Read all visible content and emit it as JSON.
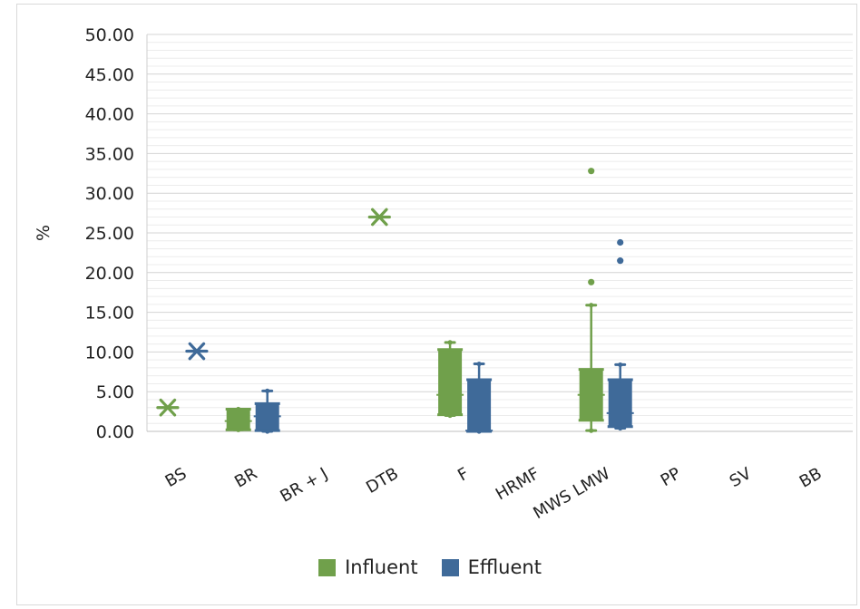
{
  "chart_data": {
    "type": "box",
    "ylabel": "%",
    "xlabel": "",
    "ylim": [
      0,
      50
    ],
    "yticks": [
      "0.00",
      "5.00",
      "10.00",
      "15.00",
      "20.00",
      "25.00",
      "30.00",
      "35.00",
      "40.00",
      "45.00",
      "50.00"
    ],
    "categories": [
      "BS",
      "BR",
      "BR + J",
      "DTB",
      "F",
      "HRMF",
      "MWS LMW",
      "PP",
      "SV",
      "BB"
    ],
    "grid": true,
    "legend_position": "bottom",
    "series": [
      {
        "name": "Influent",
        "color": "#70a04b",
        "single_points": [
          {
            "category": "BS",
            "value": 3.0
          },
          {
            "category": "DTB",
            "value": 27.0
          }
        ],
        "boxes": [
          {
            "category": "BR",
            "min": 0.2,
            "q1": 0.2,
            "median": 1.3,
            "q3": 2.8,
            "max": 2.8,
            "mean": 1.4
          },
          {
            "category": "F",
            "min": 2.0,
            "q1": 2.1,
            "median": 4.6,
            "q3": 10.3,
            "max": 11.2,
            "mean": 4.6
          },
          {
            "category": "MWS LMW",
            "min": 0.1,
            "q1": 1.4,
            "median": 4.6,
            "q3": 7.8,
            "max": 15.9,
            "mean": 4.6,
            "outliers": [
              18.8,
              32.8
            ]
          }
        ]
      },
      {
        "name": "Effluent",
        "color": "#3f6a99",
        "single_points": [
          {
            "category": "BS",
            "value": 10.1
          }
        ],
        "boxes": [
          {
            "category": "BR",
            "min": 0.0,
            "q1": 0.1,
            "median": 1.9,
            "q3": 3.5,
            "max": 5.1,
            "mean": 1.9
          },
          {
            "category": "F",
            "min": 0.0,
            "q1": 0.0,
            "median": 0.1,
            "q3": 6.5,
            "max": 8.5,
            "mean": 0.1
          },
          {
            "category": "MWS LMW",
            "min": 0.4,
            "q1": 0.6,
            "median": 2.3,
            "q3": 6.5,
            "max": 8.4,
            "mean": 2.3,
            "outliers": [
              21.5,
              23.8
            ]
          }
        ]
      }
    ]
  }
}
